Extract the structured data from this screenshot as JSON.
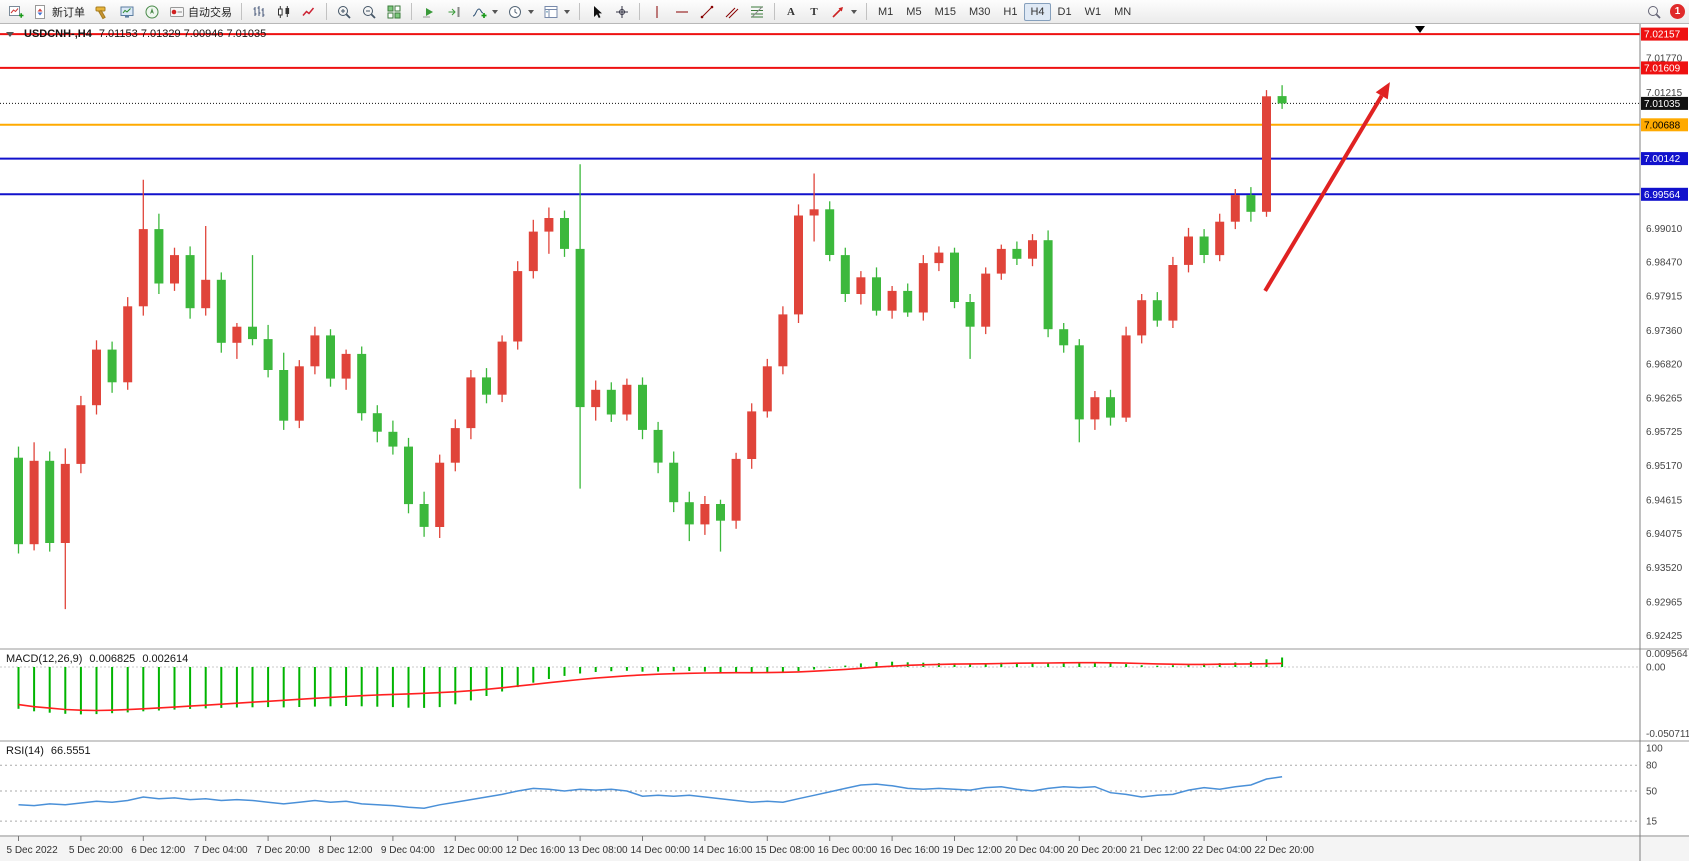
{
  "toolbar": {
    "new_order_label": "新订单",
    "autotrading_label": "自动交易",
    "timeframes": [
      "M1",
      "M5",
      "M15",
      "M30",
      "H1",
      "H4",
      "D1",
      "W1",
      "MN"
    ],
    "active_timeframe": "H4",
    "text_tool_glyph": "A",
    "label_tool_glyph": "T",
    "notification_count": "1"
  },
  "main_pane": {
    "symbol_period": "USDCNH-,H4",
    "ohlc": "7.01153 7.01329 7.00946 7.01035"
  },
  "macd_pane": {
    "name": "MACD(12,26,9)",
    "value_main": "0.006825",
    "value_signal": "0.002614"
  },
  "rsi_pane": {
    "name": "RSI(14)",
    "value": "66.5551"
  },
  "chart_data": {
    "type": "candlestick",
    "symbol": "USDCNH-",
    "timeframe": "H4",
    "ohlc_display": {
      "open": "7.01153",
      "high": "7.01329",
      "low": "7.00946",
      "close": "7.01035"
    },
    "ylim": [
      6.9222,
      7.0232
    ],
    "colors": {
      "up": "#e0443a",
      "down": "#3cb83c",
      "macd_histogram": "#00b400",
      "macd_signal": "#ff2020",
      "rsi_line": "#4a90d8"
    },
    "hlines": [
      {
        "price": 7.02157,
        "label": "7.02157",
        "color": "#ee1111",
        "label_text": "#ffffff",
        "width": 2
      },
      {
        "price": 7.01609,
        "label": "7.01609",
        "color": "#ee1111",
        "label_text": "#ffffff",
        "width": 2
      },
      {
        "price": 7.01035,
        "label": "7.01035",
        "color": "#111111",
        "label_text": "#ffffff",
        "width": 1,
        "dash": "1,2"
      },
      {
        "price": 7.00688,
        "label": "7.00688",
        "color": "#ffaa00",
        "label_text": "#000000",
        "width": 2
      },
      {
        "price": 7.00142,
        "label": "7.00142",
        "color": "#1111cc",
        "label_text": "#ffffff",
        "width": 2
      },
      {
        "price": 6.99564,
        "label": "6.99564",
        "color": "#1111cc",
        "label_text": "#ffffff",
        "width": 2
      }
    ],
    "price_axis_ticks": [
      7.0177,
      7.01215,
      6.9901,
      6.9847,
      6.97915,
      6.9736,
      6.9682,
      6.96265,
      6.95725,
      6.9517,
      6.94615,
      6.94075,
      6.9352,
      6.92965,
      6.92425
    ],
    "candles": [
      [
        6.953,
        6.9548,
        6.9375,
        6.939
      ],
      [
        6.939,
        6.9555,
        6.938,
        6.9525
      ],
      [
        6.9525,
        6.954,
        6.9378,
        6.9392
      ],
      [
        6.9392,
        6.9545,
        6.9285,
        6.952
      ],
      [
        6.952,
        6.963,
        6.9505,
        6.9615
      ],
      [
        6.9615,
        6.972,
        6.96,
        6.9705
      ],
      [
        6.9705,
        6.9718,
        6.9635,
        6.9652
      ],
      [
        6.9652,
        6.979,
        6.964,
        6.9775
      ],
      [
        6.9775,
        6.998,
        6.976,
        6.99
      ],
      [
        6.99,
        6.9925,
        6.9795,
        6.9812
      ],
      [
        6.9812,
        6.987,
        6.98,
        6.9858
      ],
      [
        6.9858,
        6.9872,
        6.9755,
        6.9772
      ],
      [
        6.9772,
        6.9905,
        6.976,
        6.9818
      ],
      [
        6.9818,
        6.983,
        6.97,
        6.9716
      ],
      [
        6.9716,
        6.9748,
        6.969,
        6.9742
      ],
      [
        6.9742,
        6.9858,
        6.9712,
        6.9722
      ],
      [
        6.9722,
        6.9745,
        6.966,
        6.9672
      ],
      [
        6.9672,
        6.97,
        6.9575,
        6.959
      ],
      [
        6.959,
        6.9688,
        6.9578,
        6.9678
      ],
      [
        6.9678,
        6.9742,
        6.9665,
        6.9728
      ],
      [
        6.9728,
        6.9738,
        6.9645,
        6.9658
      ],
      [
        6.9658,
        6.9705,
        6.964,
        6.9698
      ],
      [
        6.9698,
        6.971,
        6.959,
        6.9602
      ],
      [
        6.9602,
        6.9615,
        6.9555,
        6.9572
      ],
      [
        6.9572,
        6.959,
        6.9535,
        6.9548
      ],
      [
        6.9548,
        6.9562,
        6.944,
        6.9455
      ],
      [
        6.9455,
        6.9475,
        6.9402,
        6.9418
      ],
      [
        6.9418,
        6.9535,
        6.94,
        6.9522
      ],
      [
        6.9522,
        6.9592,
        6.9508,
        6.9578
      ],
      [
        6.9578,
        6.9672,
        6.956,
        6.966
      ],
      [
        6.966,
        6.9675,
        6.9618,
        6.9632
      ],
      [
        6.9632,
        6.9728,
        6.962,
        6.9718
      ],
      [
        6.9718,
        6.9848,
        6.9705,
        6.9832
      ],
      [
        6.9832,
        6.9915,
        6.982,
        6.9896
      ],
      [
        6.9896,
        6.9935,
        6.986,
        6.9918
      ],
      [
        6.9918,
        6.993,
        6.9855,
        6.9868
      ],
      [
        6.9868,
        7.0005,
        6.948,
        6.9612
      ],
      [
        6.9612,
        6.9655,
        6.959,
        6.964
      ],
      [
        6.964,
        6.9652,
        6.9588,
        6.96
      ],
      [
        6.96,
        6.9658,
        6.959,
        6.9648
      ],
      [
        6.9648,
        6.966,
        6.956,
        6.9575
      ],
      [
        6.9575,
        6.9588,
        6.9505,
        6.9522
      ],
      [
        6.9522,
        6.954,
        6.9442,
        6.9458
      ],
      [
        6.9458,
        6.9475,
        6.9395,
        6.9422
      ],
      [
        6.9422,
        6.9468,
        6.9405,
        6.9455
      ],
      [
        6.9455,
        6.9462,
        6.9378,
        6.9428
      ],
      [
        6.9428,
        6.9538,
        6.9415,
        6.9528
      ],
      [
        6.9528,
        6.9618,
        6.9512,
        6.9605
      ],
      [
        6.9605,
        6.969,
        6.9595,
        6.9678
      ],
      [
        6.9678,
        6.9775,
        6.9665,
        6.9762
      ],
      [
        6.9762,
        6.994,
        6.9748,
        6.9922
      ],
      [
        6.9922,
        6.999,
        6.988,
        6.9932
      ],
      [
        6.9932,
        6.9945,
        6.9848,
        6.9858
      ],
      [
        6.9858,
        6.987,
        6.9782,
        6.9795
      ],
      [
        6.9795,
        6.9832,
        6.9778,
        6.9822
      ],
      [
        6.9822,
        6.9838,
        6.976,
        6.9768
      ],
      [
        6.9768,
        6.9808,
        6.9755,
        6.98
      ],
      [
        6.98,
        6.9812,
        6.9758,
        6.9765
      ],
      [
        6.9765,
        6.9858,
        6.9752,
        6.9845
      ],
      [
        6.9845,
        6.9872,
        6.9832,
        6.9862
      ],
      [
        6.9862,
        6.987,
        6.9772,
        6.9782
      ],
      [
        6.9782,
        6.9795,
        6.969,
        6.9742
      ],
      [
        6.9742,
        6.9838,
        6.973,
        6.9828
      ],
      [
        6.9828,
        6.9875,
        6.9818,
        6.9868
      ],
      [
        6.9868,
        6.988,
        6.9842,
        6.9852
      ],
      [
        6.9852,
        6.9892,
        6.984,
        6.9882
      ],
      [
        6.9882,
        6.9898,
        6.9725,
        6.9738
      ],
      [
        6.9738,
        6.9748,
        6.97,
        6.9712
      ],
      [
        6.9712,
        6.9722,
        6.9555,
        6.9592
      ],
      [
        6.9592,
        6.9638,
        6.9575,
        6.9628
      ],
      [
        6.9628,
        6.964,
        6.9582,
        6.9595
      ],
      [
        6.9595,
        6.9742,
        6.9588,
        6.9728
      ],
      [
        6.9728,
        6.9795,
        6.9715,
        6.9785
      ],
      [
        6.9785,
        6.9798,
        6.9742,
        6.9752
      ],
      [
        6.9752,
        6.9855,
        6.974,
        6.9842
      ],
      [
        6.9842,
        6.9902,
        6.983,
        6.9888
      ],
      [
        6.9888,
        6.99,
        6.9845,
        6.9858
      ],
      [
        6.9858,
        6.9925,
        6.9848,
        6.9912
      ],
      [
        6.9912,
        6.9965,
        6.99,
        6.9955
      ],
      [
        6.9955,
        6.9968,
        6.9912,
        6.9928
      ],
      [
        6.9928,
        7.0125,
        6.992,
        7.0115
      ],
      [
        7.01153,
        7.01329,
        7.00946,
        7.01035
      ]
    ],
    "x_labels": [
      {
        "bar": 0,
        "text": "5 Dec 2022"
      },
      {
        "bar": 4,
        "text": "5 Dec 20:00"
      },
      {
        "bar": 8,
        "text": "6 Dec 12:00"
      },
      {
        "bar": 12,
        "text": "7 Dec 04:00"
      },
      {
        "bar": 16,
        "text": "7 Dec 20:00"
      },
      {
        "bar": 20,
        "text": "8 Dec 12:00"
      },
      {
        "bar": 24,
        "text": "9 Dec 04:00"
      },
      {
        "bar": 28,
        "text": "12 Dec 00:00"
      },
      {
        "bar": 32,
        "text": "12 Dec 16:00"
      },
      {
        "bar": 36,
        "text": "13 Dec 08:00"
      },
      {
        "bar": 40,
        "text": "14 Dec 00:00"
      },
      {
        "bar": 44,
        "text": "14 Dec 16:00"
      },
      {
        "bar": 48,
        "text": "15 Dec 08:00"
      },
      {
        "bar": 52,
        "text": "16 Dec 00:00"
      },
      {
        "bar": 56,
        "text": "16 Dec 16:00"
      },
      {
        "bar": 60,
        "text": "19 Dec 12:00"
      },
      {
        "bar": 64,
        "text": "20 Dec 04:00"
      },
      {
        "bar": 68,
        "text": "20 Dec 20:00"
      },
      {
        "bar": 72,
        "text": "21 Dec 12:00"
      },
      {
        "bar": 76,
        "text": "22 Dec 04:00"
      },
      {
        "bar": 80,
        "text": "22 Dec 20:00"
      }
    ],
    "macd": {
      "label": "MACD(12,26,9)",
      "histogram": [
        -0.03,
        -0.0318,
        -0.0328,
        -0.0336,
        -0.034,
        -0.0338,
        -0.0332,
        -0.0326,
        -0.0318,
        -0.0312,
        -0.0306,
        -0.0301,
        -0.0297,
        -0.0294,
        -0.0291,
        -0.0289,
        -0.0288,
        -0.029,
        -0.0287,
        -0.0284,
        -0.0282,
        -0.028,
        -0.0282,
        -0.0285,
        -0.0288,
        -0.0292,
        -0.0294,
        -0.0288,
        -0.0268,
        -0.024,
        -0.0208,
        -0.0176,
        -0.0144,
        -0.0113,
        -0.0086,
        -0.0064,
        -0.0047,
        -0.0036,
        -0.003,
        -0.0027,
        -0.0034,
        -0.0033,
        -0.0031,
        -0.0029,
        -0.0033,
        -0.0037,
        -0.0042,
        -0.0046,
        -0.0042,
        -0.0038,
        -0.0029,
        -0.0018,
        -0.0005,
        0.001,
        0.0026,
        0.0036,
        0.0038,
        0.0034,
        0.0031,
        0.0028,
        0.0026,
        0.0025,
        0.0028,
        0.0031,
        0.0029,
        0.0026,
        0.0029,
        0.0033,
        0.0035,
        0.0033,
        0.0027,
        0.0021,
        0.0013,
        0.0009,
        0.0013,
        0.0019,
        0.0025,
        0.0028,
        0.0032,
        0.0038,
        0.0055,
        0.0068
      ],
      "signal": [
        -0.027,
        -0.0285,
        -0.0295,
        -0.0305,
        -0.031,
        -0.0312,
        -0.031,
        -0.0306,
        -0.03,
        -0.0294,
        -0.0288,
        -0.0281,
        -0.0274,
        -0.0267,
        -0.026,
        -0.0253,
        -0.0246,
        -0.0239,
        -0.0232,
        -0.0225,
        -0.0218,
        -0.0212,
        -0.0206,
        -0.0201,
        -0.0197,
        -0.0193,
        -0.0189,
        -0.0184,
        -0.0178,
        -0.017,
        -0.016,
        -0.0149,
        -0.0137,
        -0.0125,
        -0.0113,
        -0.0101,
        -0.009,
        -0.008,
        -0.0071,
        -0.0063,
        -0.0057,
        -0.0052,
        -0.0048,
        -0.0045,
        -0.0043,
        -0.0042,
        -0.0041,
        -0.0041,
        -0.004,
        -0.0038,
        -0.0035,
        -0.003,
        -0.0024,
        -0.0017,
        -0.0009,
        -0.0001,
        0.0006,
        0.0012,
        0.0016,
        0.0019,
        0.0021,
        0.0022,
        0.0023,
        0.0025,
        0.0027,
        0.0028,
        0.0029,
        0.003,
        0.0031,
        0.0031,
        0.003,
        0.0028,
        0.0025,
        0.0022,
        0.002,
        0.0019,
        0.0019,
        0.002,
        0.0021,
        0.0022,
        0.0024,
        0.0026
      ],
      "scale_ticks": [
        "0.009564",
        "0.00",
        "-0.050711"
      ]
    },
    "rsi": {
      "label": "RSI(14)",
      "values": [
        34,
        33,
        35,
        34,
        36,
        38,
        37,
        39,
        43,
        41,
        42,
        40,
        41,
        39,
        40,
        39,
        37,
        35,
        37,
        39,
        37,
        38,
        35,
        34,
        33,
        31,
        30,
        34,
        37,
        40,
        43,
        46,
        50,
        53,
        52,
        50,
        52,
        51,
        52,
        50,
        44,
        45,
        44,
        45,
        43,
        41,
        39,
        37,
        38,
        37,
        41,
        45,
        49,
        53,
        57,
        58,
        56,
        53,
        52,
        53,
        52,
        51,
        54,
        55,
        52,
        50,
        53,
        55,
        54,
        55,
        48,
        46,
        43,
        45,
        46,
        51,
        54,
        52,
        55,
        57,
        64,
        66.56
      ],
      "levels": [
        80,
        50,
        15
      ],
      "scale_ticks": [
        "100",
        "80",
        "50",
        "15"
      ]
    },
    "arrow": {
      "from_bar": 80.2,
      "from_price": 6.98,
      "to_bar": 88.2,
      "to_price": 7.0138,
      "color": "#e02222"
    }
  }
}
